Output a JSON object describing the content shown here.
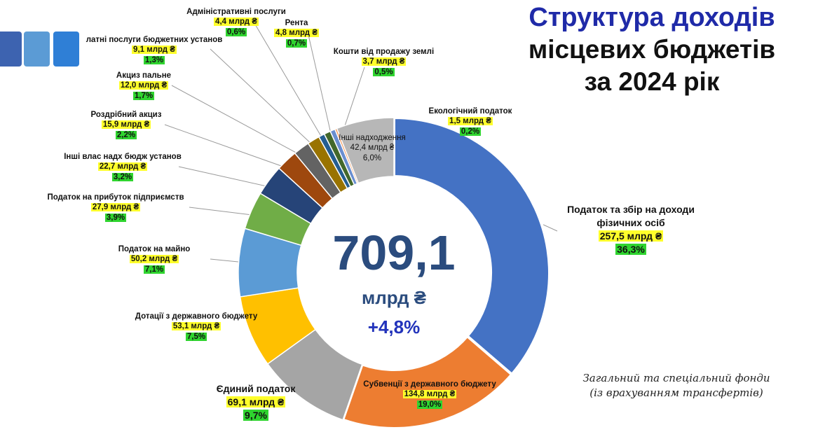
{
  "title": {
    "line1": "Структура доходів",
    "line2": "місцевих бюджетів",
    "line3": "за 2024 рік"
  },
  "center": {
    "total": "709,1",
    "unit": "млрд ₴",
    "growth": "+4,8%"
  },
  "note": {
    "line1": "Загальний та спеціальний фонди",
    "line2": "(із врахуванням трансфертів)"
  },
  "colors": {
    "title_accent": "#1f2aa8",
    "amount_highlight": "#ffff2b",
    "percent_highlight": "#2fd42f"
  },
  "chart_data": {
    "type": "pie",
    "donut": true,
    "unit": "млрд ₴",
    "slices": [
      {
        "name": "Податок та збір на доходи фізичних осіб",
        "value": 257.5,
        "amount": "257,5 млрд ₴",
        "percent": "36,3%",
        "color": "#4472c4"
      },
      {
        "name": "Субвенції з державного бюджету",
        "value": 134.8,
        "amount": "134,8 млрд ₴",
        "percent": "19,0%",
        "color": "#ed7d31"
      },
      {
        "name": "Єдиний податок",
        "value": 69.1,
        "amount": "69,1 млрд ₴",
        "percent": "9,7%",
        "color": "#a5a5a5"
      },
      {
        "name": "Дотації з державного бюджету",
        "value": 53.1,
        "amount": "53,1 млрд ₴",
        "percent": "7,5%",
        "color": "#ffc000"
      },
      {
        "name": "Податок на майно",
        "value": 50.2,
        "amount": "50,2 млрд ₴",
        "percent": "7,1%",
        "color": "#5b9bd5"
      },
      {
        "name": "Податок на прибуток підприємств",
        "value": 27.9,
        "amount": "27,9 млрд ₴",
        "percent": "3,9%",
        "color": "#70ad47"
      },
      {
        "name": "Інші влас надх бюдж установ",
        "value": 22.7,
        "amount": "22,7 млрд ₴",
        "percent": "3,2%",
        "color": "#264478"
      },
      {
        "name": "Роздрібний акциз",
        "value": 15.9,
        "amount": "15,9 млрд ₴",
        "percent": "2,2%",
        "color": "#9e480e"
      },
      {
        "name": "Акциз пальне",
        "value": 12.0,
        "amount": "12,0 млрд ₴",
        "percent": "1,7%",
        "color": "#636363"
      },
      {
        "name": "латні послуги бюджетних установ",
        "value": 9.1,
        "amount": "9,1 млрд ₴",
        "percent": "1,3%",
        "color": "#997300"
      },
      {
        "name": "Адміністративні послуги",
        "value": 4.4,
        "amount": "4,4 млрд ₴",
        "percent": "0,6%",
        "color": "#255e91"
      },
      {
        "name": "Рента",
        "value": 4.8,
        "amount": "4,8 млрд ₴",
        "percent": "0,7%",
        "color": "#43682b"
      },
      {
        "name": "Кошти від продажу землі",
        "value": 3.7,
        "amount": "3,7 млрд ₴",
        "percent": "0,5%",
        "color": "#698ed0"
      },
      {
        "name": "Екологічний податок",
        "value": 1.5,
        "amount": "1,5 млрд ₴",
        "percent": "0,2%",
        "color": "#f1975a"
      },
      {
        "name": "Інші надходження",
        "value": 42.4,
        "amount": "42,4 млрд ₴",
        "percent": "6,0%",
        "color": "#b7b7b7"
      }
    ]
  }
}
